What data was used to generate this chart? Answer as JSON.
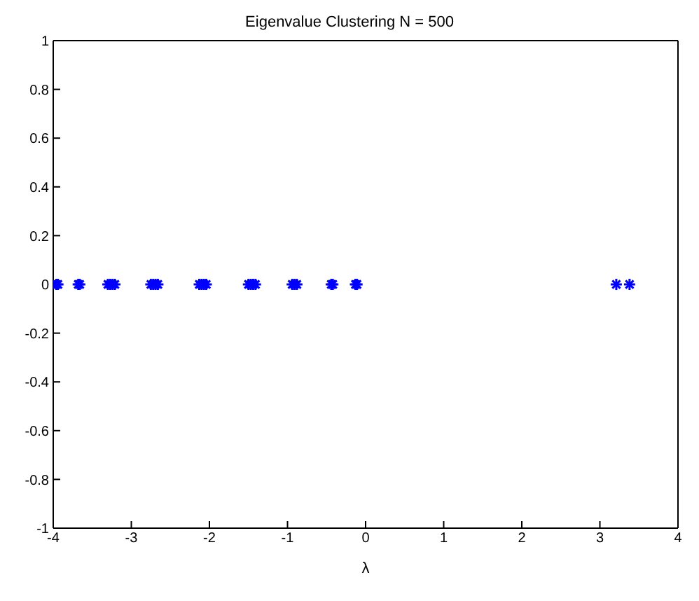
{
  "chart_data": {
    "type": "scatter",
    "title": "Eigenvalue Clustering N = 500",
    "xlabel": "λ",
    "series": [
      {
        "color": "#0000ff",
        "x": [
          -3.96,
          -3.94,
          -3.68,
          -3.66,
          -3.3,
          -3.27,
          -3.24,
          -3.21,
          -2.75,
          -2.72,
          -2.69,
          -2.66,
          -2.13,
          -2.1,
          -2.07,
          -2.04,
          -1.5,
          -1.47,
          -1.44,
          -1.41,
          -0.94,
          -0.91,
          -0.88,
          -0.44,
          -0.42,
          -0.13,
          -0.11,
          3.21,
          3.38
        ],
        "values": [
          0,
          0,
          0,
          0,
          0,
          0,
          0,
          0,
          0,
          0,
          0,
          0,
          0,
          0,
          0,
          0,
          0,
          0,
          0,
          0,
          0,
          0,
          0,
          0,
          0,
          0,
          0,
          0,
          0
        ]
      }
    ],
    "xlim": [
      -4,
      4
    ],
    "xticks": [
      -4,
      -3,
      -2,
      -1,
      0,
      1,
      2,
      3,
      4
    ],
    "ylim": [
      -1,
      1
    ],
    "yticks": [
      -1,
      -0.8,
      -0.6,
      -0.4,
      -0.2,
      0,
      0.2,
      0.4,
      0.6,
      0.8,
      1
    ],
    "legend": false,
    "marker": "cross"
  }
}
